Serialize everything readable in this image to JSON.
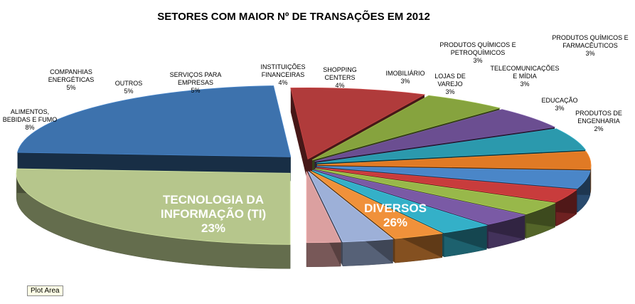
{
  "chart_data": {
    "type": "pie",
    "title": "SETORES COM MAIOR Nº DE  TRANSAÇÕES EM 2012",
    "slices": [
      {
        "label": "DIVERSOS",
        "value": 26,
        "value_label": "26%",
        "color": "#b6c68c"
      },
      {
        "label": "TECNOLOGIA DA INFORMAÇÃO (TI)",
        "value": 23,
        "value_label": "23%",
        "color": "#3d72ad"
      },
      {
        "label": "ALIMENTOS, BEBIDAS E FUMO",
        "value": 8,
        "value_label": "8%",
        "color": "#b03b3b"
      },
      {
        "label": "COMPANHIAS ENERGÉTICAS",
        "value": 5,
        "value_label": "5%",
        "color": "#86a33e"
      },
      {
        "label": "OUTROS",
        "value": 5,
        "value_label": "5%",
        "color": "#6b4e91"
      },
      {
        "label": "SERVIÇOS PARA EMPRESAS",
        "value": 5,
        "value_label": "5%",
        "color": "#2b99ad"
      },
      {
        "label": "INSTITUIÇÕES FINANCEIRAS",
        "value": 4,
        "value_label": "4%",
        "color": "#e07a25"
      },
      {
        "label": "SHOPPING CENTERS",
        "value": 4,
        "value_label": "4%",
        "color": "#4a86c8"
      },
      {
        "label": "IMOBILIÁRIO",
        "value": 3,
        "value_label": "3%",
        "color": "#c83c3c"
      },
      {
        "label": "LOJAS DE VAREJO",
        "value": 3,
        "value_label": "3%",
        "color": "#98b84a"
      },
      {
        "label": "PRODUTOS QUÍMICOS E PETROQUÍMICOS",
        "value": 3,
        "value_label": "3%",
        "color": "#7a5aa5"
      },
      {
        "label": "TELECOMUNICAÇÕES E MÍDIA",
        "value": 3,
        "value_label": "3%",
        "color": "#34b0c8"
      },
      {
        "label": "EDUCAÇÃO",
        "value": 3,
        "value_label": "3%",
        "color": "#f0913a"
      },
      {
        "label": "PRODUTOS QUÍMICOS E FARMACÊUTICOS",
        "value": 3,
        "value_label": "3%",
        "color": "#9db0d8"
      },
      {
        "label": "PRODUTOS DE ENGENHARIA",
        "value": 2,
        "value_label": "2%",
        "color": "#dba0a0"
      }
    ]
  },
  "plot_area_tag": "Plot Area"
}
